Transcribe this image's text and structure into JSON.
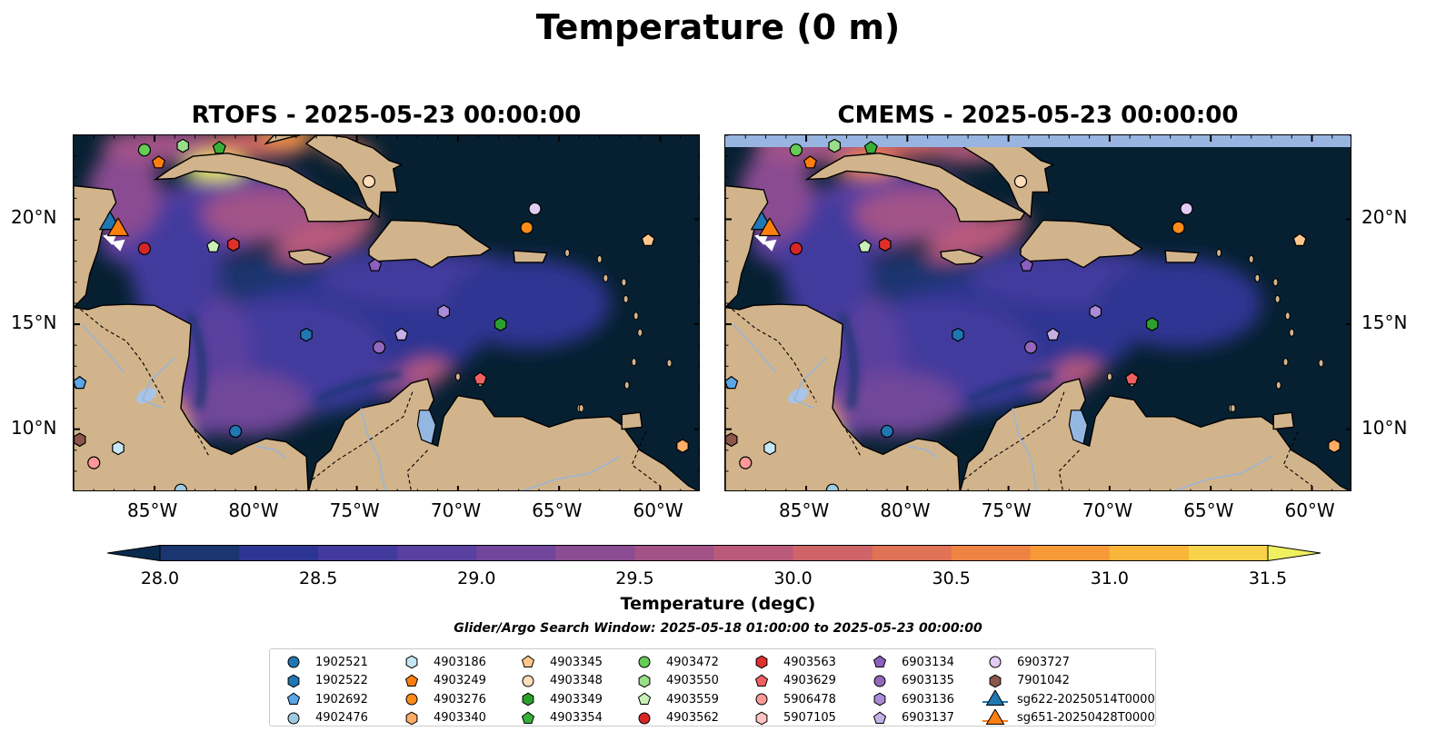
{
  "title": "Temperature (0 m)",
  "panels": [
    {
      "title": "RTOFS - 2025-05-23 00:00:00"
    },
    {
      "title": "CMEMS - 2025-05-23 00:00:00"
    }
  ],
  "axes": {
    "lon_labels": [
      "85°W",
      "80°W",
      "75°W",
      "70°W",
      "65°W",
      "60°W"
    ],
    "lat_labels": [
      "20°N",
      "15°N",
      "10°N"
    ],
    "lon_range": [
      -89,
      -58
    ],
    "lat_range": [
      7,
      24
    ]
  },
  "colorbar": {
    "label": "Temperature (degC)",
    "ticks": [
      "28.0",
      "28.5",
      "29.0",
      "29.5",
      "30.0",
      "30.5",
      "31.0",
      "31.5"
    ],
    "range": [
      28.0,
      31.5
    ],
    "colors": [
      "#0a2a4e",
      "#1a3570",
      "#2d3592",
      "#433a9e",
      "#5a409f",
      "#71469a",
      "#8a4c92",
      "#a25287",
      "#ba5a7b",
      "#cf6468",
      "#e07255",
      "#ee8444",
      "#f69a38",
      "#f9b43a",
      "#f8d24a",
      "#eef060"
    ]
  },
  "search_window": "Glider/Argo Search Window: 2025-05-18 01:00:00 to 2025-05-23 00:00:00",
  "legend": [
    {
      "label": "1902521",
      "color": "#1f77b4",
      "shape": "circle"
    },
    {
      "label": "1902522",
      "color": "#1f77b4",
      "shape": "hexagon"
    },
    {
      "label": "1902692",
      "color": "#5aa6e6",
      "shape": "pentagon"
    },
    {
      "label": "4902476",
      "color": "#9ecae1",
      "shape": "circle"
    },
    {
      "label": "4903186",
      "color": "#c6e6f5",
      "shape": "hexagon"
    },
    {
      "label": "4903249",
      "color": "#ff7f0e",
      "shape": "pentagon"
    },
    {
      "label": "4903276",
      "color": "#ff8c1a",
      "shape": "circle"
    },
    {
      "label": "4903340",
      "color": "#ffad66",
      "shape": "hexagon"
    },
    {
      "label": "4903345",
      "color": "#ffc88a",
      "shape": "pentagon"
    },
    {
      "label": "4903348",
      "color": "#ffddb8",
      "shape": "circle"
    },
    {
      "label": "4903349",
      "color": "#2ca02c",
      "shape": "hexagon"
    },
    {
      "label": "4903354",
      "color": "#37b037",
      "shape": "pentagon"
    },
    {
      "label": "4903472",
      "color": "#66cc55",
      "shape": "circle"
    },
    {
      "label": "4903550",
      "color": "#98df8a",
      "shape": "hexagon"
    },
    {
      "label": "4903559",
      "color": "#c8f0b8",
      "shape": "pentagon"
    },
    {
      "label": "4903562",
      "color": "#d62728",
      "shape": "circle"
    },
    {
      "label": "4903563",
      "color": "#e0302c",
      "shape": "hexagon"
    },
    {
      "label": "4903629",
      "color": "#f06060",
      "shape": "pentagon"
    },
    {
      "label": "5906478",
      "color": "#ff9896",
      "shape": "circle"
    },
    {
      "label": "5907105",
      "color": "#ffc4c2",
      "shape": "hexagon"
    },
    {
      "label": "6903134",
      "color": "#8c5fbf",
      "shape": "pentagon"
    },
    {
      "label": "6903135",
      "color": "#9467bd",
      "shape": "circle"
    },
    {
      "label": "6903136",
      "color": "#a98bd9",
      "shape": "hexagon"
    },
    {
      "label": "6903137",
      "color": "#c5b0e6",
      "shape": "pentagon"
    },
    {
      "label": "6903727",
      "color": "#e2cdf5",
      "shape": "circle"
    },
    {
      "label": "7901042",
      "color": "#8c564b",
      "shape": "hexagon"
    },
    {
      "label": "sg622-20250514T0000",
      "color": "#1f77b4",
      "shape": "triangle"
    },
    {
      "label": "sg651-20250428T0000",
      "color": "#ff7f0e",
      "shape": "triangle"
    }
  ],
  "floats": [
    {
      "id": "4903472",
      "lon": -85.5,
      "lat": 23.3,
      "color": "#66cc55",
      "shape": "circle"
    },
    {
      "id": "4903249",
      "lon": -84.8,
      "lat": 22.7,
      "color": "#ff7f0e",
      "shape": "pentagon"
    },
    {
      "id": "4903550",
      "lon": -83.6,
      "lat": 23.5,
      "color": "#98df8a",
      "shape": "hexagon"
    },
    {
      "id": "4903354",
      "lon": -81.8,
      "lat": 23.4,
      "color": "#37b037",
      "shape": "pentagon"
    },
    {
      "id": "4903562",
      "lon": -85.5,
      "lat": 18.6,
      "color": "#d62728",
      "shape": "circle"
    },
    {
      "id": "4903559",
      "lon": -82.1,
      "lat": 18.7,
      "color": "#c8f0b8",
      "shape": "pentagon"
    },
    {
      "id": "4903563",
      "lon": -81.1,
      "lat": 18.8,
      "color": "#e0302c",
      "shape": "hexagon"
    },
    {
      "id": "4903348",
      "lon": -74.4,
      "lat": 21.8,
      "color": "#ffddb8",
      "shape": "circle"
    },
    {
      "id": "6903134",
      "lon": -74.1,
      "lat": 17.8,
      "color": "#8c5fbf",
      "shape": "pentagon"
    },
    {
      "id": "6903727",
      "lon": -66.2,
      "lat": 20.5,
      "color": "#e2cdf5",
      "shape": "circle"
    },
    {
      "id": "4903276",
      "lon": -66.6,
      "lat": 19.6,
      "color": "#ff8c1a",
      "shape": "circle"
    },
    {
      "id": "4903345",
      "lon": -60.6,
      "lat": 19.0,
      "color": "#ffc88a",
      "shape": "pentagon"
    },
    {
      "id": "1902522",
      "lon": -77.5,
      "lat": 14.5,
      "color": "#1f77b4",
      "shape": "hexagon"
    },
    {
      "id": "6903136",
      "lon": -70.7,
      "lat": 15.6,
      "color": "#a98bd9",
      "shape": "hexagon"
    },
    {
      "id": "4903349",
      "lon": -67.9,
      "lat": 15.0,
      "color": "#2ca02c",
      "shape": "hexagon"
    },
    {
      "id": "6903135",
      "lon": -73.9,
      "lat": 13.9,
      "color": "#9467bd",
      "shape": "circle"
    },
    {
      "id": "6903137",
      "lon": -72.8,
      "lat": 14.5,
      "color": "#c5b0e6",
      "shape": "pentagon"
    },
    {
      "id": "4903629",
      "lon": -68.9,
      "lat": 12.4,
      "color": "#f06060",
      "shape": "pentagon"
    },
    {
      "id": "1902692",
      "lon": -88.7,
      "lat": 12.2,
      "color": "#5aa6e6",
      "shape": "pentagon"
    },
    {
      "id": "7901042",
      "lon": -88.7,
      "lat": 9.5,
      "color": "#8c564b",
      "shape": "hexagon"
    },
    {
      "id": "4903186",
      "lon": -86.8,
      "lat": 9.1,
      "color": "#c6e6f5",
      "shape": "hexagon"
    },
    {
      "id": "5906478",
      "lon": -88.0,
      "lat": 8.4,
      "color": "#ff9896",
      "shape": "circle"
    },
    {
      "id": "4902476",
      "lon": -83.7,
      "lat": 7.1,
      "color": "#9ecae1",
      "shape": "circle"
    },
    {
      "id": "1902521",
      "lon": -81.0,
      "lat": 9.9,
      "color": "#1f77b4",
      "shape": "circle"
    },
    {
      "id": "4903340",
      "lon": -58.9,
      "lat": 9.2,
      "color": "#ffad66",
      "shape": "hexagon"
    }
  ],
  "gliders": [
    {
      "id": "sg622-20250514T0000",
      "lon": -87.2,
      "lat": 19.8,
      "color": "#1f77b4"
    },
    {
      "id": "sg651-20250428T0000",
      "lon": -86.8,
      "lat": 19.5,
      "color": "#ff7f0e"
    }
  ]
}
